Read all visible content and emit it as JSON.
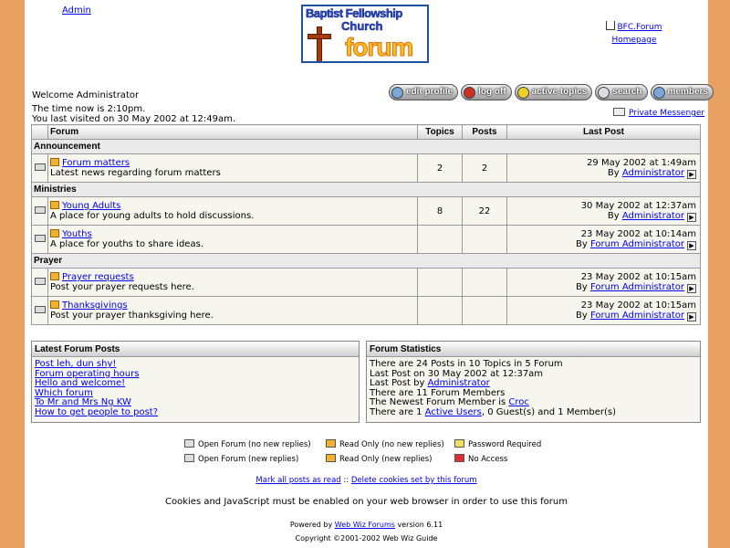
{
  "header": {
    "admin_link": "Admin",
    "logo": {
      "line1": "Baptist Fellowship",
      "line2": "Church",
      "line3": "forum"
    },
    "home_link1": "BFC.Forum",
    "home_link2": "Homepage"
  },
  "welcome": {
    "greeting": "Welcome Administrator",
    "time": "The time now is 2:10pm.",
    "last_visit": "You last visited on 30 May 2002 at 12:49am."
  },
  "toolbar": [
    {
      "label": "edit profile",
      "icon": "user-icon"
    },
    {
      "label": "log off",
      "icon": "key-icon"
    },
    {
      "label": "active topics",
      "icon": "lightning-icon"
    },
    {
      "label": "search",
      "icon": "magnifier-icon"
    },
    {
      "label": "members",
      "icon": "users-icon"
    }
  ],
  "private_messenger": "Private Messenger",
  "table": {
    "headers": {
      "forum": "Forum",
      "topics": "Topics",
      "posts": "Posts",
      "last_post": "Last Post"
    },
    "categories": [
      {
        "name": "Announcement",
        "forums": [
          {
            "name": "Forum matters",
            "desc": "Latest news regarding forum matters",
            "topics": "2",
            "posts": "2",
            "date": "29 May 2002 at 1:49am",
            "by": "By ",
            "author": "Administrator"
          }
        ]
      },
      {
        "name": "Ministries",
        "forums": [
          {
            "name": "Young Adults",
            "desc": "A place for young adults to hold discussions.",
            "topics": "8",
            "posts": "22",
            "date": "30 May 2002 at 12:37am",
            "by": "By ",
            "author": "Administrator"
          },
          {
            "name": "Youths",
            "desc": "A place for youths to share ideas.",
            "topics": "",
            "posts": "",
            "date": "23 May 2002 at 10:14am",
            "by": "By ",
            "author": "Forum Administrator"
          }
        ]
      },
      {
        "name": "Prayer",
        "forums": [
          {
            "name": "Prayer requests",
            "desc": "Post your prayer requests here.",
            "topics": "",
            "posts": "",
            "date": "23 May 2002 at 10:15am",
            "by": "By ",
            "author": "Forum Administrator"
          },
          {
            "name": "Thanksgivings",
            "desc": "Post your prayer thanksgiving here.",
            "topics": "",
            "posts": "",
            "date": "23 May 2002 at 10:15am",
            "by": "By ",
            "author": "Forum Administrator"
          }
        ]
      }
    ]
  },
  "latest": {
    "title": "Latest Forum Posts",
    "posts": [
      "Post leh, dun shy!",
      "Forum operating hours",
      "Hello and welcome!",
      "Which forum",
      "To Mr and Mrs Ng KW",
      "How to get people to post?"
    ]
  },
  "stats": {
    "title": "Forum Statistics",
    "l1": "There are 24 Posts in 10 Topics in 5 Forum",
    "l2": "Last Post on 30 May 2002 at 12:37am",
    "l3a": "Last Post by ",
    "l3b": "Administrator",
    "l4": "There are 11 Forum Members",
    "l5a": "The Newest Forum Member is ",
    "l5b": "Croc",
    "l6a": "There are 1 ",
    "l6b": "Active Users",
    "l6c": ", 0 Guest(s) and 1 Member(s)"
  },
  "legend": [
    "Open Forum (no new replies)",
    "Open Forum (new replies)",
    "Read Only (no new replies)",
    "Read Only (new replies)",
    "Password Required",
    "No Access"
  ],
  "footer": {
    "mark_read": "Mark all posts as read",
    "sep": " :: ",
    "delete_cookies": "Delete cookies set by this forum",
    "cookies_note": "Cookies and JavaScript must be enabled on your web browser in order to use this forum",
    "powered_pre": "Powered by ",
    "powered_link": "Web Wiz Forums",
    "powered_post": " version 6.11",
    "copyright": "Copyright ©2001-2002 Web Wiz Guide"
  }
}
